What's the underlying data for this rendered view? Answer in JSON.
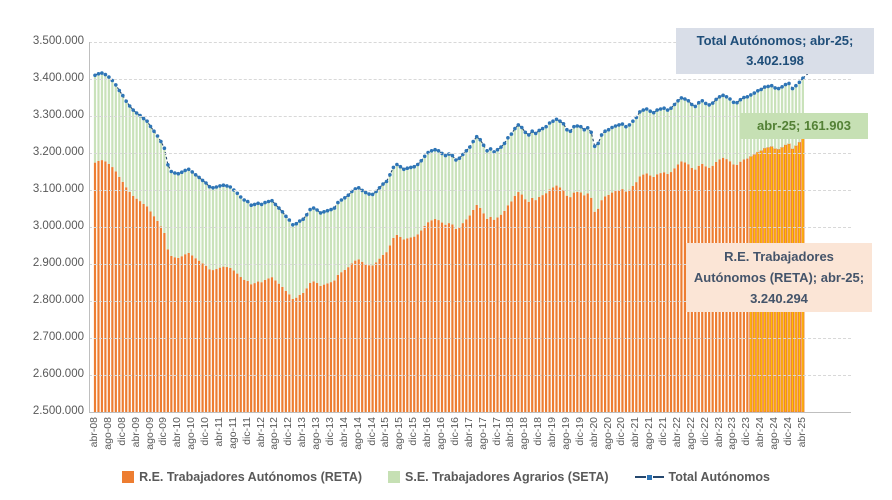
{
  "chart": {
    "annotations": {
      "total": {
        "line1": "Total Autónomos; abr-25;",
        "line2": "3.402.198"
      },
      "seta": {
        "label": "abr-25; 161.903"
      },
      "reta": {
        "line1": "R.E. Trabajadores",
        "line2": "Autónomos (RETA); abr-25;",
        "line3": "3.240.294"
      }
    },
    "legend": {
      "reta": "R.E. Trabajadores Autónomos (RETA)",
      "seta": "S.E. Trabajadores Agrarios (SETA)",
      "total": "Total Autónomos"
    },
    "colors": {
      "reta_bar": "#ED7D31",
      "reta_highlight": "#FFC000",
      "seta_bar": "#C9E2BA",
      "total_dot": "#2E75B6",
      "total_dash": "#24476E",
      "axis_text": "#595959",
      "total_box_bg": "#D9DEE8",
      "total_box_text": "#1F4E79",
      "seta_box_bg": "#C6E0B4",
      "seta_box_text": "#538135",
      "reta_box_bg": "#FBE5D6",
      "reta_box_text": "#44546A"
    }
  },
  "chart_data": {
    "type": "combo_stacked_bar_line",
    "title": "",
    "x_start": "abr-08",
    "x_end": "abr-25",
    "n_months": 205,
    "x_tick_every": 4,
    "x_tick_labels": [
      "abr-08",
      "ago-08",
      "dic-08",
      "abr-09",
      "ago-09",
      "dic-09",
      "abr-10",
      "ago-10",
      "dic-10",
      "abr-11",
      "ago-11",
      "dic-11",
      "abr-12",
      "ago-12",
      "dic-12",
      "abr-13",
      "ago-13",
      "dic-13",
      "abr-14",
      "ago-14",
      "dic-14",
      "abr-15",
      "ago-15",
      "dic-15",
      "abr-16",
      "ago-16",
      "dic-16",
      "abr-17",
      "ago-17",
      "dic-17",
      "abr-18",
      "ago-18",
      "dic-18",
      "abr-19",
      "ago-19",
      "dic-19",
      "abr-20",
      "ago-20",
      "dic-20",
      "abr-21",
      "ago-21",
      "dic-21",
      "abr-22",
      "ago-22",
      "dic-22",
      "abr-23",
      "ago-23",
      "dic-23",
      "abr-24",
      "ago-24",
      "dic-24",
      "abr-25"
    ],
    "y_axis": {
      "min": 2500000,
      "max": 3500000,
      "step": 100000,
      "grid": "dashed",
      "tick_labels": [
        "3.500.000",
        "3.400.000",
        "3.300.000",
        "3.200.000",
        "3.100.000",
        "3.000.000",
        "2.900.000",
        "2.800.000",
        "2.700.000",
        "2.600.000",
        "2.500.000"
      ]
    },
    "highlight_from_index": 189,
    "highlight_from_label": "ene-24",
    "series": [
      {
        "name": "Total Autónomos",
        "type": "line-dotted",
        "values": [
          3410000,
          3414000,
          3416000,
          3412000,
          3405000,
          3396000,
          3384000,
          3369000,
          3355000,
          3340000,
          3327000,
          3316000,
          3308000,
          3301000,
          3293000,
          3286000,
          3272000,
          3259000,
          3246000,
          3231000,
          3213000,
          3168000,
          3150000,
          3146000,
          3144000,
          3148000,
          3153000,
          3156000,
          3149000,
          3141000,
          3134000,
          3126000,
          3119000,
          3109000,
          3106000,
          3108000,
          3111000,
          3113000,
          3111000,
          3108000,
          3100000,
          3091000,
          3081000,
          3073000,
          3069000,
          3059000,
          3061000,
          3064000,
          3061000,
          3066000,
          3069000,
          3071000,
          3061000,
          3051000,
          3041000,
          3029000,
          3019000,
          3006000,
          3009000,
          3016000,
          3021000,
          3033000,
          3047000,
          3051000,
          3046000,
          3038000,
          3041000,
          3044000,
          3047000,
          3051000,
          3066000,
          3073000,
          3079000,
          3086000,
          3096000,
          3103000,
          3106000,
          3099000,
          3093000,
          3089000,
          3088000,
          3096000,
          3106000,
          3116000,
          3123000,
          3141000,
          3161000,
          3169000,
          3163000,
          3156000,
          3159000,
          3161000,
          3163000,
          3169000,
          3179000,
          3191000,
          3201000,
          3206000,
          3209000,
          3206000,
          3199000,
          3193000,
          3197000,
          3193000,
          3181000,
          3186000,
          3196000,
          3206000,
          3216000,
          3231000,
          3244000,
          3236000,
          3221000,
          3206000,
          3211000,
          3203000,
          3209000,
          3216000,
          3226000,
          3241000,
          3251000,
          3266000,
          3276000,
          3269000,
          3256000,
          3249000,
          3259000,
          3253000,
          3261000,
          3266000,
          3271000,
          3281000,
          3286000,
          3291000,
          3286000,
          3279000,
          3263000,
          3259000,
          3271000,
          3273000,
          3271000,
          3263000,
          3268000,
          3256000,
          3218000,
          3226000,
          3249000,
          3259000,
          3263000,
          3269000,
          3273000,
          3276000,
          3278000,
          3271000,
          3276000,
          3286000,
          3296000,
          3311000,
          3316000,
          3319000,
          3313000,
          3309000,
          3316000,
          3319000,
          3321000,
          3316000,
          3321000,
          3331000,
          3341000,
          3349000,
          3346000,
          3341000,
          3331000,
          3326000,
          3336000,
          3341000,
          3334000,
          3330000,
          3335000,
          3345000,
          3352000,
          3356000,
          3352000,
          3346000,
          3337000,
          3336000,
          3344000,
          3350000,
          3352000,
          3357000,
          3362000,
          3368000,
          3372000,
          3378000,
          3380000,
          3382000,
          3376000,
          3374000,
          3379000,
          3385000,
          3388000,
          3374000,
          3382000,
          3391000,
          3402198
        ],
        "last_value": 3402198
      },
      {
        "name": "S.E. Trabajadores Agrarios (SETA)",
        "type": "bar-stack-top",
        "values": [
          236000,
          235600,
          235200,
          234800,
          234400,
          234000,
          233700,
          233400,
          233000,
          232600,
          232200,
          231800,
          231400,
          231000,
          230700,
          230400,
          230100,
          229800,
          229500,
          229200,
          229000,
          228600,
          228200,
          227800,
          227400,
          227000,
          226600,
          226200,
          225800,
          225400,
          225000,
          224500,
          224000,
          223200,
          222400,
          221600,
          220800,
          220000,
          219200,
          218400,
          217600,
          216900,
          216200,
          215600,
          215000,
          213800,
          212600,
          211400,
          210200,
          209000,
          207800,
          206600,
          205400,
          204200,
          203000,
          202000,
          201000,
          200500,
          200000,
          199500,
          199000,
          198600,
          198200,
          197800,
          197400,
          197000,
          196700,
          196300,
          196000,
          195700,
          195400,
          195100,
          194800,
          194500,
          194200,
          193800,
          193400,
          193000,
          192700,
          192300,
          192000,
          191800,
          191500,
          191300,
          191000,
          190800,
          190500,
          190300,
          190000,
          189800,
          189500,
          189300,
          189000,
          188800,
          188500,
          188300,
          188000,
          187800,
          187500,
          187300,
          187000,
          186800,
          186500,
          186300,
          186000,
          185800,
          185500,
          185300,
          185000,
          184800,
          184500,
          184300,
          184000,
          183800,
          183500,
          183300,
          183000,
          182800,
          182500,
          182300,
          182000,
          181800,
          181500,
          181300,
          181000,
          180800,
          180500,
          180300,
          180000,
          179800,
          179600,
          179400,
          179200,
          179000,
          178800,
          178600,
          178400,
          178200,
          178000,
          177800,
          177500,
          177300,
          177200,
          177000,
          176800,
          176600,
          176400,
          176300,
          176100,
          176000,
          175800,
          175700,
          175500,
          175300,
          175100,
          174900,
          174700,
          174500,
          174300,
          174100,
          173900,
          173700,
          173500,
          173300,
          173000,
          172800,
          172500,
          172300,
          172000,
          171800,
          171500,
          171300,
          171000,
          170800,
          170500,
          170300,
          170000,
          169800,
          169500,
          169300,
          169000,
          168800,
          168500,
          168300,
          168000,
          167800,
          167500,
          167300,
          167000,
          166700,
          166400,
          166100,
          165800,
          165500,
          165200,
          164900,
          164600,
          164300,
          164000,
          163700,
          163500,
          163100,
          162700,
          162300,
          161903
        ],
        "last_value": 161903
      },
      {
        "name": "R.E. Trabajadores Autónomos (RETA)",
        "type": "bar-stack-bottom",
        "values_rule": "total_minus_seta",
        "last_value": 3240294
      }
    ]
  }
}
